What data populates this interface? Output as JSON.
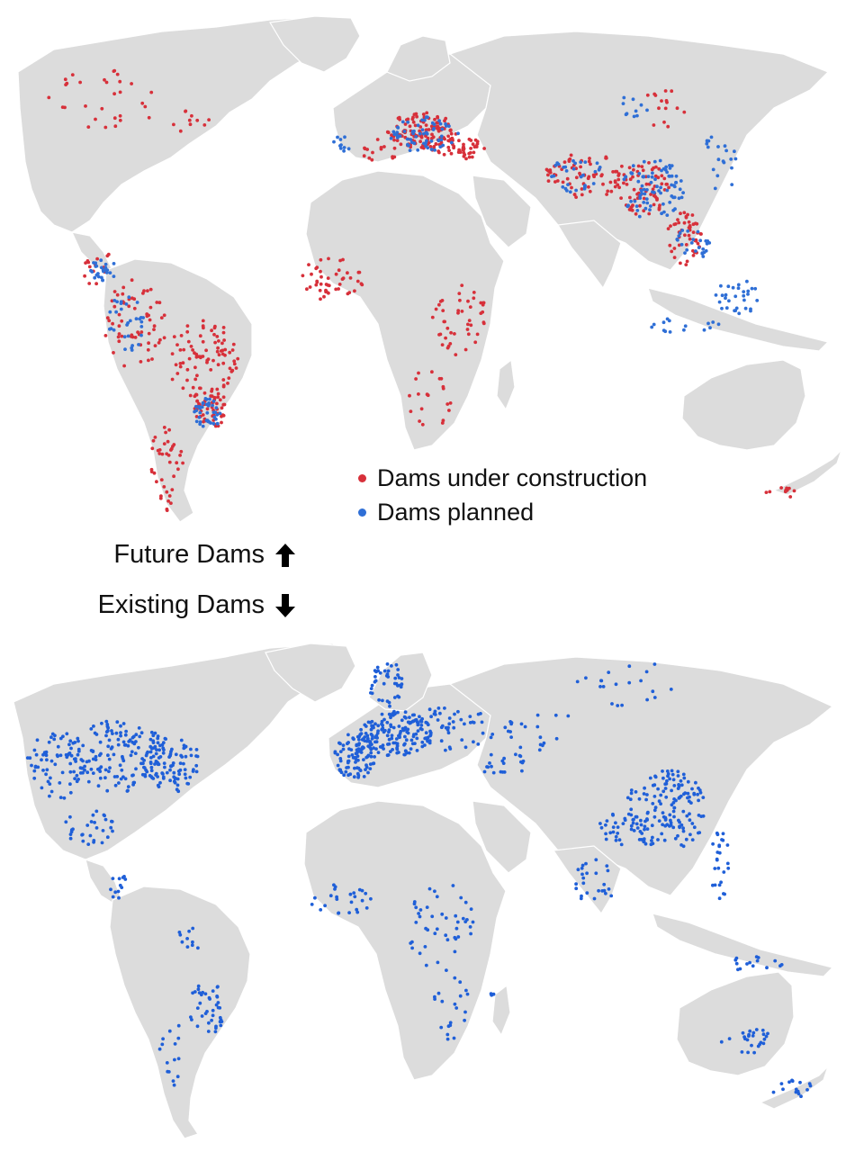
{
  "legend": {
    "under_construction": {
      "label": "Dams under construction",
      "color": "#d7303a"
    },
    "planned": {
      "label": "Dams planned",
      "color": "#2f6fd6"
    }
  },
  "divider": {
    "future_label": "Future Dams",
    "future_icon": "arrow-up-icon",
    "existing_label": "Existing Dams",
    "existing_icon": "arrow-down-icon"
  },
  "colors": {
    "land": "#dcdcdc",
    "existing_dams": "#1f5fd8"
  }
}
